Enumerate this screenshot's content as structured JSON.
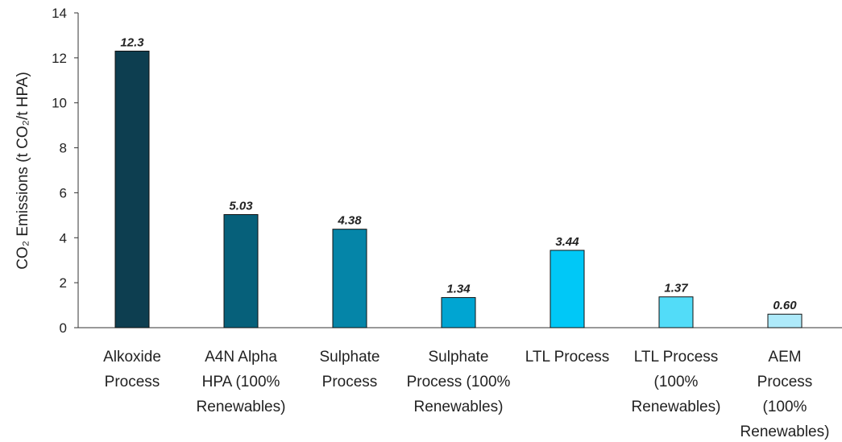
{
  "chart_data": {
    "type": "bar",
    "y_axis_label": "CO₂ Emissions (t CO₂/t HPA)",
    "categories": [
      "Alkoxide Process",
      "A4N Alpha HPA (100% Renewables)",
      "Sulphate Process",
      "Sulphate Process (100% Renewables)",
      "LTL Process",
      "LTL Process (100% Renewables)",
      "AEM Process (100% Renewables)"
    ],
    "values": [
      12.3,
      5.03,
      4.38,
      1.34,
      3.44,
      1.37,
      0.6
    ],
    "value_labels": [
      "12.3",
      "5.03",
      "4.38",
      "1.34",
      "3.44",
      "1.37",
      "0.60"
    ],
    "colors": [
      "#0d3e50",
      "#06607a",
      "#0585a8",
      "#00a5d2",
      "#00c8f7",
      "#52dcf8",
      "#aeeafa"
    ],
    "ylim": [
      0,
      14
    ],
    "yticks": [
      0,
      2,
      4,
      6,
      8,
      10,
      12,
      14
    ],
    "grid": false
  }
}
